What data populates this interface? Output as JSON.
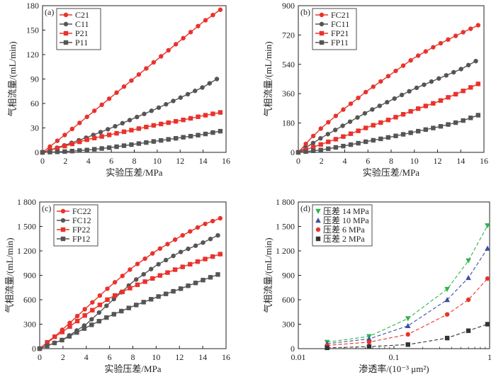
{
  "figure": {
    "chart_data": [
      {
        "panel_label": "(a)",
        "type": "line",
        "xlabel": "实验压差/MPa",
        "ylabel": "气相流量/(mL/min)",
        "xlim": [
          0,
          16
        ],
        "ylim": [
          0,
          180
        ],
        "xticks": [
          0,
          2,
          4,
          6,
          8,
          10,
          12,
          14,
          16
        ],
        "yticks": [
          0,
          30,
          60,
          90,
          120,
          150,
          180
        ],
        "ytick_labels": [
          "0",
          "30",
          "60",
          "90",
          "120",
          "150",
          "180"
        ],
        "legend_position": "top-left",
        "series": [
          {
            "name": "C21",
            "color": "#e8332c",
            "marker": "circle",
            "x": [
              0,
              2,
              4,
              6,
              8,
              10,
              12,
              14,
              15.5
            ],
            "y": [
              0,
              22,
              45,
              68,
              91,
              114,
              137,
              160,
              175
            ]
          },
          {
            "name": "C11",
            "color": "#555555",
            "marker": "circle",
            "x": [
              0,
              2,
              4,
              6,
              8,
              10,
              12,
              14,
              15.2
            ],
            "y": [
              0,
              9,
              19,
              30,
              42,
              54,
              67,
              80,
              90
            ]
          },
          {
            "name": "P21",
            "color": "#e8332c",
            "marker": "square",
            "x": [
              0,
              2,
              4,
              6,
              8,
              10,
              12,
              14,
              15.5
            ],
            "y": [
              0,
              8,
              16,
              22,
              28,
              34,
              39,
              45,
              49
            ]
          },
          {
            "name": "P11",
            "color": "#555555",
            "marker": "square",
            "x": [
              0,
              2,
              4,
              6,
              8,
              10,
              12,
              14,
              15.5
            ],
            "y": [
              0,
              1,
              3,
              6,
              10,
              14,
              18,
              22,
              26
            ]
          }
        ]
      },
      {
        "panel_label": "(b)",
        "type": "line",
        "xlabel": "实验压差/MPa",
        "ylabel": "气相流量/(mL/min)",
        "xlim": [
          0,
          16
        ],
        "ylim": [
          0,
          900
        ],
        "xticks": [
          0,
          2,
          4,
          6,
          8,
          10,
          12,
          14,
          16
        ],
        "yticks": [
          0,
          180,
          360,
          540,
          720,
          900
        ],
        "ytick_labels": [
          "0",
          "180",
          "360",
          "540",
          "720",
          "900"
        ],
        "legend_position": "top-left",
        "series": [
          {
            "name": "FC21",
            "color": "#e8332c",
            "marker": "circle",
            "x": [
              0,
              1,
              2,
              4,
              6,
              8,
              10,
              12,
              14,
              15.5
            ],
            "y": [
              0,
              80,
              150,
              270,
              380,
              480,
              580,
              660,
              730,
              780
            ]
          },
          {
            "name": "FC11",
            "color": "#555555",
            "marker": "circle",
            "x": [
              0,
              1,
              2,
              4,
              6,
              8,
              10,
              12,
              14,
              15.3
            ],
            "y": [
              0,
              45,
              90,
              170,
              250,
              320,
              390,
              450,
              510,
              560
            ]
          },
          {
            "name": "FP21",
            "color": "#e8332c",
            "marker": "square",
            "x": [
              0,
              1,
              2,
              4,
              6,
              8,
              10,
              12,
              14,
              15.5
            ],
            "y": [
              0,
              25,
              50,
              100,
              155,
              205,
              260,
              310,
              370,
              420
            ]
          },
          {
            "name": "FP11",
            "color": "#555555",
            "marker": "square",
            "x": [
              0,
              2,
              4,
              6,
              8,
              10,
              12,
              14,
              15.5
            ],
            "y": [
              0,
              15,
              40,
              68,
              95,
              125,
              155,
              190,
              228
            ]
          }
        ]
      },
      {
        "panel_label": "(c)",
        "type": "line",
        "xlabel": "实验压差/MPa",
        "ylabel": "气相流量/(mL/min)",
        "xlim": [
          0,
          16
        ],
        "ylim": [
          0,
          1800
        ],
        "xticks": [
          0,
          2,
          4,
          6,
          8,
          10,
          12,
          14,
          16
        ],
        "yticks": [
          0,
          300,
          600,
          900,
          1200,
          1500,
          1800
        ],
        "ytick_labels": [
          "0",
          "300",
          "600",
          "900",
          "1 200",
          "1 500",
          "1 800"
        ],
        "legend_position": "top-left",
        "series": [
          {
            "name": "FC22",
            "color": "#e8332c",
            "marker": "circle",
            "x": [
              0,
              1,
              2,
              4,
              6,
              8,
              10,
              12,
              14,
              15.5
            ],
            "y": [
              0,
              110,
              240,
              500,
              760,
              1000,
              1200,
              1370,
              1520,
              1600
            ]
          },
          {
            "name": "FC12",
            "color": "#555555",
            "marker": "circle",
            "x": [
              0,
              2,
              4,
              6,
              8,
              10,
              12,
              14,
              15.3
            ],
            "y": [
              0,
              110,
              300,
              560,
              820,
              1020,
              1180,
              1300,
              1390
            ]
          },
          {
            "name": "FP22",
            "color": "#e8332c",
            "marker": "square",
            "x": [
              0,
              1,
              2,
              4,
              6,
              8,
              10,
              12,
              14,
              15.5
            ],
            "y": [
              0,
              120,
              210,
              420,
              620,
              760,
              880,
              990,
              1090,
              1160
            ]
          },
          {
            "name": "FP12",
            "color": "#555555",
            "marker": "square",
            "x": [
              0,
              2,
              4,
              6,
              8,
              10,
              12,
              14,
              15.3
            ],
            "y": [
              0,
              110,
              260,
              400,
              520,
              630,
              730,
              840,
              910
            ]
          }
        ]
      },
      {
        "panel_label": "(d)",
        "type": "scatter",
        "xlabel": "渗透率/(10⁻³ μm²)",
        "ylabel": "气相流量/(mL/min)",
        "xscale": "log",
        "xlim": [
          0.01,
          1
        ],
        "ylim": [
          0,
          1800
        ],
        "xticks": [
          0.01,
          0.1,
          1
        ],
        "xtick_labels": [
          "0.01",
          "0.1",
          "1"
        ],
        "yticks": [
          0,
          300,
          600,
          900,
          1200,
          1500,
          1800
        ],
        "ytick_labels": [
          "0",
          "300",
          "600",
          "900",
          "1 200",
          "1 500",
          "1 800"
        ],
        "legend_position": "top-left",
        "trendlines": "dashed",
        "series": [
          {
            "name": "压差 14 MPa",
            "color": "#2fb34a",
            "marker": "triangle-down",
            "x": [
              0.02,
              0.055,
              0.14,
              0.36,
              0.6,
              0.95
            ],
            "y": [
              80,
              150,
              370,
              730,
              1080,
              1510
            ]
          },
          {
            "name": "压差 10 MPa",
            "color": "#3a4fa0",
            "marker": "triangle-up",
            "x": [
              0.02,
              0.055,
              0.14,
              0.36,
              0.6,
              0.95
            ],
            "y": [
              60,
              120,
              280,
              600,
              870,
              1230
            ]
          },
          {
            "name": "压差 6 MPa",
            "color": "#e8332c",
            "marker": "circle",
            "x": [
              0.02,
              0.055,
              0.14,
              0.36,
              0.6,
              0.95
            ],
            "y": [
              40,
              80,
              175,
              420,
              600,
              860
            ]
          },
          {
            "name": "压差 2 MPa",
            "color": "#333333",
            "marker": "square",
            "x": [
              0.02,
              0.055,
              0.14,
              0.36,
              0.6,
              0.95
            ],
            "y": [
              10,
              25,
              50,
              130,
              220,
              300
            ]
          }
        ]
      }
    ]
  }
}
